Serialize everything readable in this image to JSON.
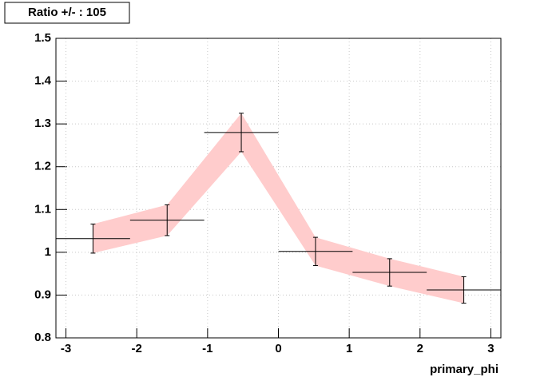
{
  "chart_data": {
    "type": "errorbar",
    "title": "Ratio +/- : 105",
    "x_label": "primary_phi",
    "x": [
      -2.618,
      -1.571,
      -0.524,
      0.524,
      1.571,
      2.618
    ],
    "xerr": [
      0.5236,
      0.5236,
      0.5236,
      0.5236,
      0.5236,
      0.5236
    ],
    "values": [
      1.032,
      1.075,
      1.28,
      1.002,
      0.953,
      0.912
    ],
    "errors": [
      0.034,
      0.036,
      0.045,
      0.033,
      0.032,
      0.031
    ],
    "color": "#000000",
    "band_color": "#ffcccc",
    "xlim": [
      -3.1416,
      3.1416
    ],
    "xticks": [
      -3,
      -2,
      -1,
      0,
      1,
      2,
      3
    ],
    "ylim": [
      0.8,
      1.5
    ],
    "yticks": [
      0.8,
      0.9,
      1,
      1.1,
      1.2,
      1.3,
      1.4,
      1.5
    ],
    "grid": true
  }
}
